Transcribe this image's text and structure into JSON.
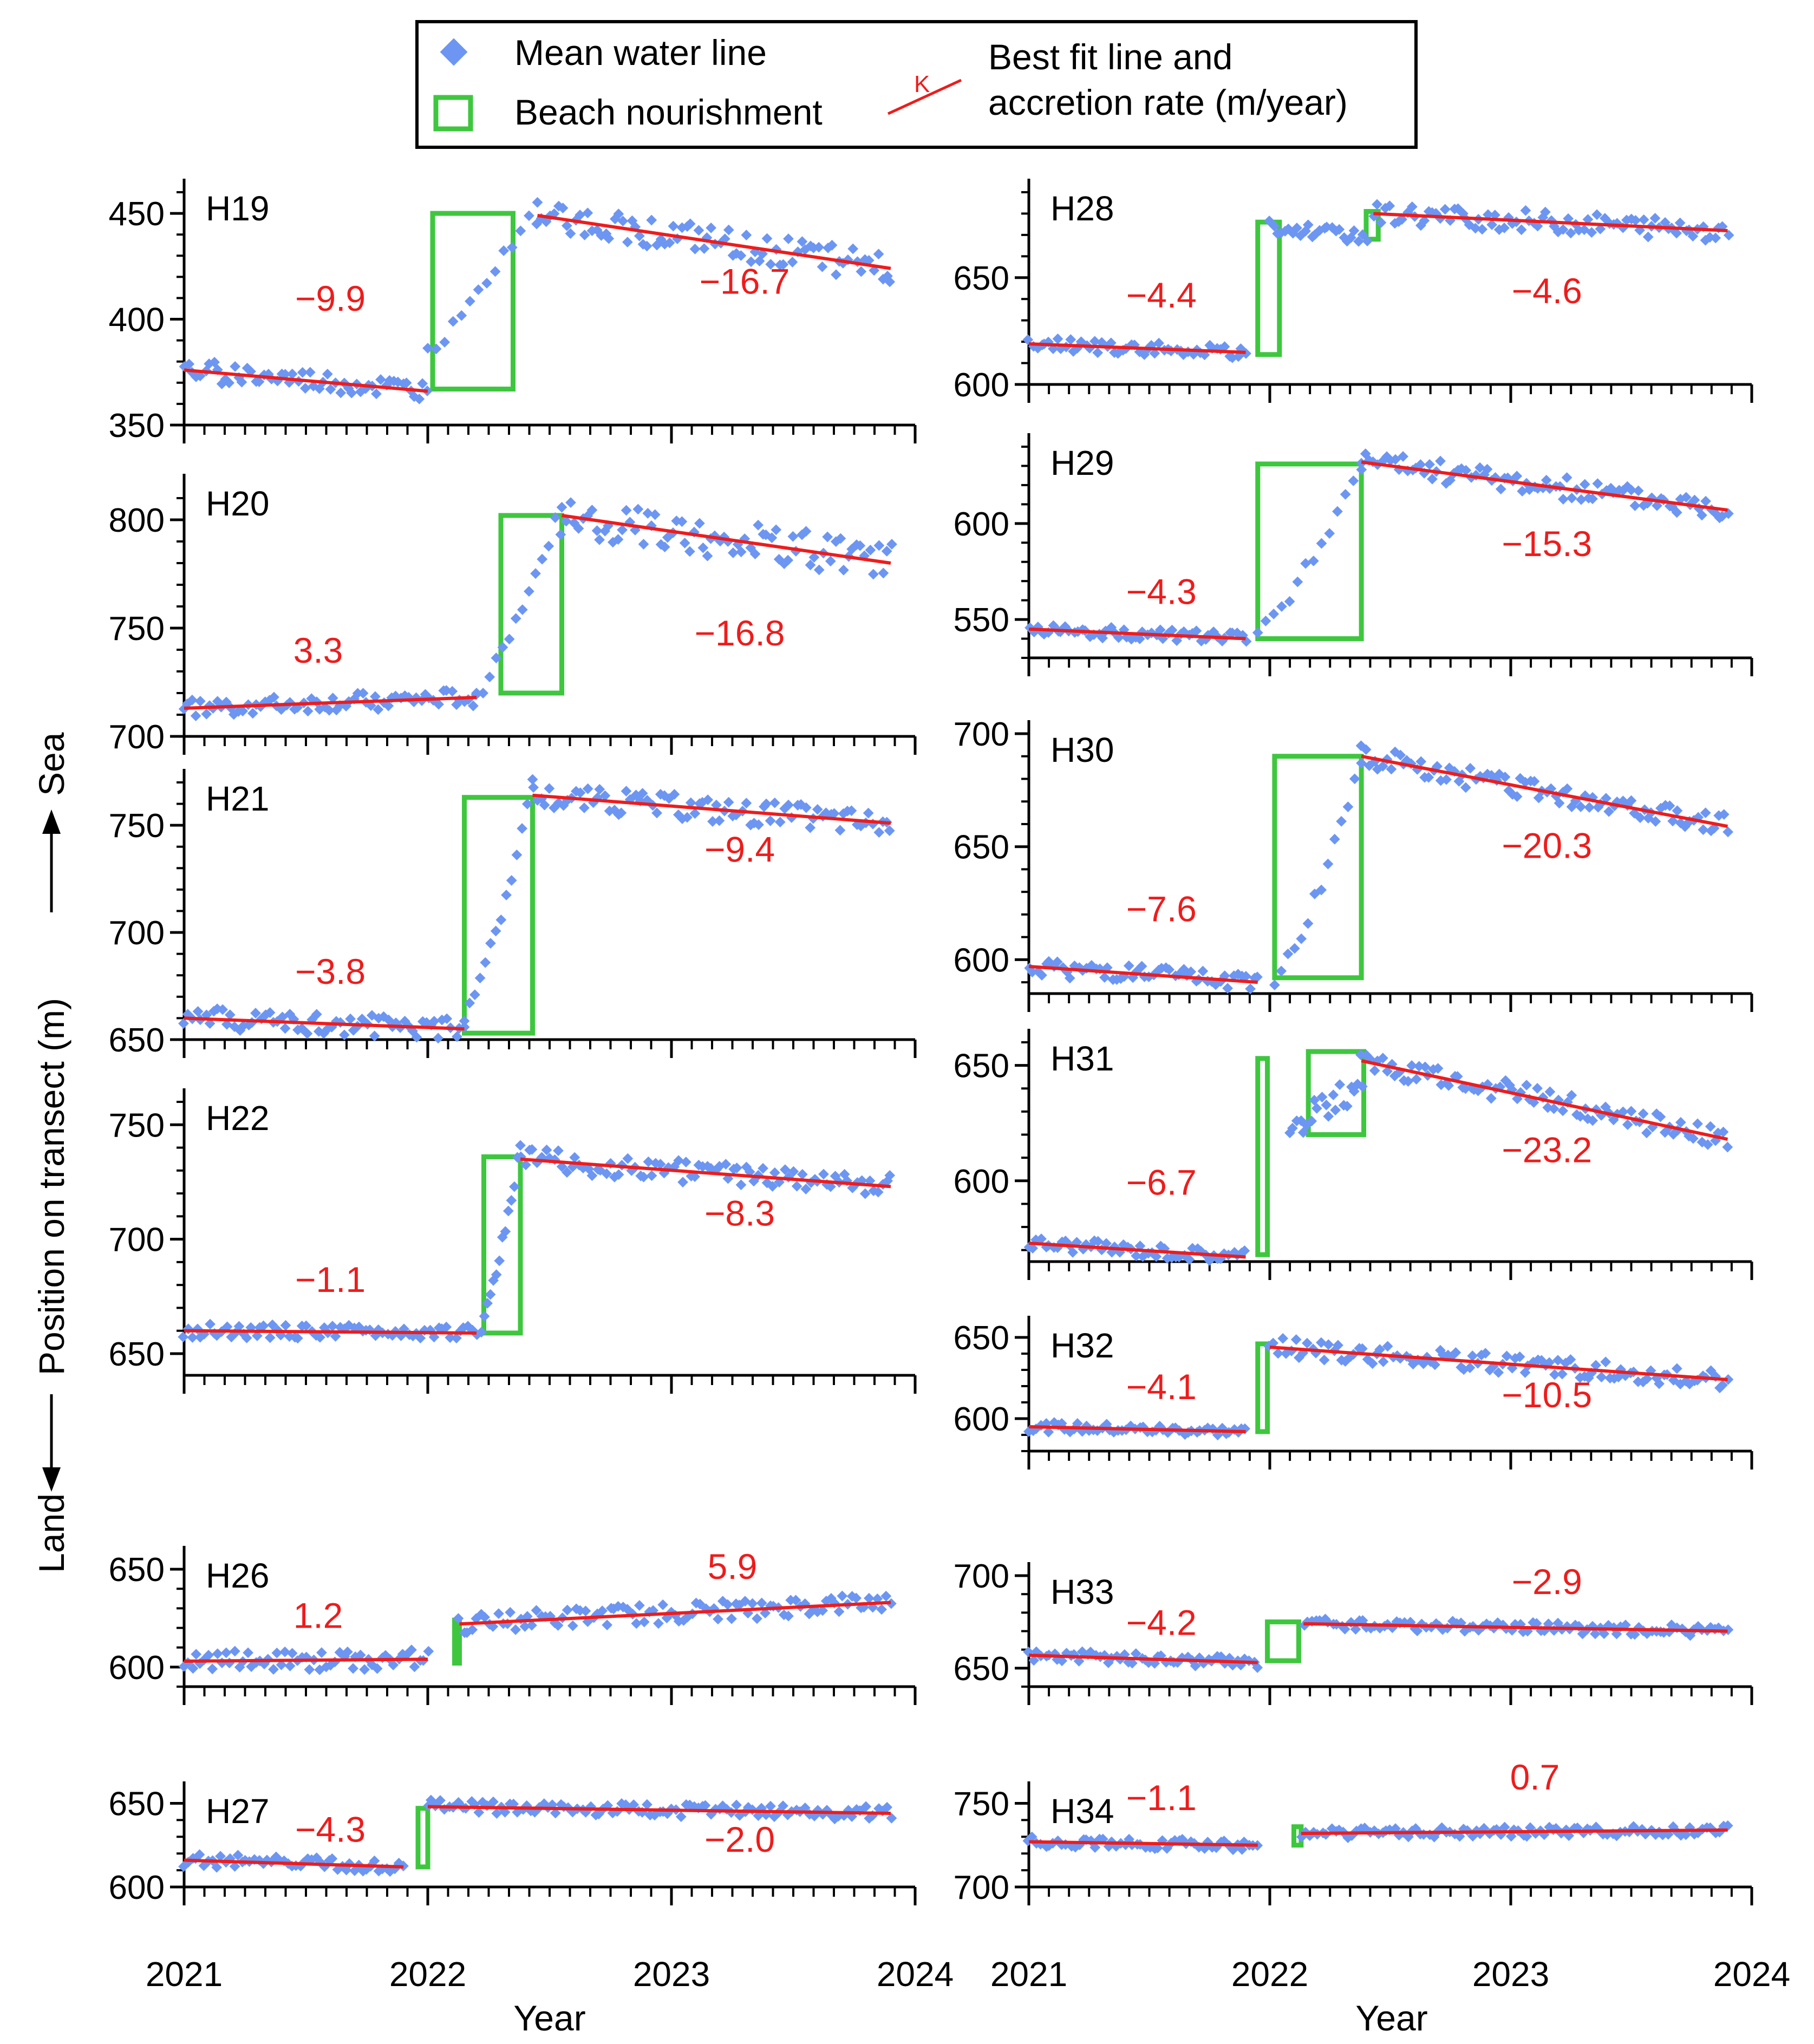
{
  "colors": {
    "points": "#6d96f2",
    "fit": "#ee1c1c",
    "nourish": "#3ec73e",
    "rate_text": "#ee1c1c",
    "axis": "#000000"
  },
  "legend": {
    "points_label": "Mean water line",
    "box_label": "Beach nourishment",
    "fit_label_line1": "Best fit line and",
    "fit_label_line2": "accretion rate (m/year)",
    "fit_symbol": "K"
  },
  "axes": {
    "xlabel": "Year",
    "ylabel_land": "Land",
    "ylabel_middle": "Position on transect (m)",
    "ylabel_sea": "Sea",
    "xticks": [
      "2021",
      "2022",
      "2023",
      "2024"
    ]
  },
  "chart_data": [
    {
      "type": "scatter",
      "title": "H19",
      "column": "left",
      "ylim": [
        350,
        460
      ],
      "yticks": [
        350,
        400,
        450
      ],
      "xlim": [
        2021,
        2024
      ],
      "nourishment": [
        {
          "x0": 2022.02,
          "x1": 2022.35,
          "y0": 367,
          "y1": 450
        }
      ],
      "segments": [
        {
          "x0": 2021.0,
          "x1": 2022.0,
          "y0": 376,
          "y1": 366,
          "rate": "−9.9",
          "seed": 19,
          "noise": 5
        },
        {
          "x0": 2022.45,
          "x1": 2023.9,
          "y0": 449,
          "y1": 424,
          "rate": "−16.7",
          "seed": 119,
          "noise": 7
        }
      ],
      "ramp": {
        "x0": 2022.0,
        "x1": 2022.45,
        "y0": 385,
        "y1": 455
      },
      "rate_positions": [
        [
          2021.6,
          404
        ],
        [
          2023.3,
          412
        ]
      ]
    },
    {
      "type": "scatter",
      "title": "H20",
      "column": "left",
      "ylim": [
        700,
        815
      ],
      "yticks": [
        700,
        750,
        800
      ],
      "xlim": [
        2021,
        2024
      ],
      "nourishment": [
        {
          "x0": 2022.3,
          "x1": 2022.55,
          "y0": 720,
          "y1": 802
        }
      ],
      "segments": [
        {
          "x0": 2021.0,
          "x1": 2022.2,
          "y0": 713,
          "y1": 718,
          "rate": "3.3",
          "seed": 20,
          "noise": 4
        },
        {
          "x0": 2022.55,
          "x1": 2023.9,
          "y0": 802,
          "y1": 780,
          "rate": "−16.8",
          "seed": 120,
          "noise": 9
        }
      ],
      "ramp": {
        "x0": 2022.2,
        "x1": 2022.55,
        "y0": 720,
        "y1": 808
      },
      "rate_positions": [
        [
          2021.55,
          734
        ],
        [
          2023.28,
          742
        ]
      ]
    },
    {
      "type": "scatter",
      "title": "H21",
      "column": "left",
      "ylim": [
        650,
        770
      ],
      "yticks": [
        650,
        700,
        750
      ],
      "xlim": [
        2021,
        2024
      ],
      "nourishment": [
        {
          "x0": 2022.15,
          "x1": 2022.43,
          "y0": 653,
          "y1": 763
        }
      ],
      "segments": [
        {
          "x0": 2021.0,
          "x1": 2022.15,
          "y0": 660,
          "y1": 655,
          "rate": "−3.8",
          "seed": 21,
          "noise": 5
        },
        {
          "x0": 2022.43,
          "x1": 2023.9,
          "y0": 764,
          "y1": 751,
          "rate": "−9.4",
          "seed": 121,
          "noise": 6
        }
      ],
      "ramp": {
        "x0": 2022.15,
        "x1": 2022.43,
        "y0": 660,
        "y1": 768
      },
      "rate_positions": [
        [
          2021.6,
          676
        ],
        [
          2023.28,
          733
        ]
      ]
    },
    {
      "type": "scatter",
      "title": "H22",
      "column": "left",
      "ylim": [
        650,
        760
      ],
      "yticks": [
        650,
        700,
        750
      ],
      "xlim": [
        2021,
        2024
      ],
      "nourishment": [
        {
          "x0": 2022.23,
          "x1": 2022.38,
          "y0": 659,
          "y1": 736
        }
      ],
      "segments": [
        {
          "x0": 2021.0,
          "x1": 2022.2,
          "y0": 660,
          "y1": 659,
          "rate": "−1.1",
          "seed": 22,
          "noise": 3
        },
        {
          "x0": 2022.38,
          "x1": 2023.9,
          "y0": 735,
          "y1": 723,
          "rate": "−8.3",
          "seed": 122,
          "noise": 5
        }
      ],
      "ramp": {
        "x0": 2022.22,
        "x1": 2022.38,
        "y0": 662,
        "y1": 740
      },
      "rate_positions": [
        [
          2021.6,
          677
        ],
        [
          2023.28,
          706
        ]
      ]
    },
    {
      "type": "scatter",
      "title": "H26",
      "column": "left",
      "ylim": [
        590,
        655
      ],
      "yticks": [
        600,
        650
      ],
      "xlim": [
        2021,
        2024
      ],
      "nourishment": [
        {
          "x0": 2022.11,
          "x1": 2022.13,
          "y0": 602,
          "y1": 624
        }
      ],
      "segments": [
        {
          "x0": 2021.0,
          "x1": 2022.0,
          "y0": 603,
          "y1": 604,
          "rate": "1.2",
          "seed": 26,
          "noise": 5
        },
        {
          "x0": 2022.13,
          "x1": 2023.9,
          "y0": 622,
          "y1": 633,
          "rate": "5.9",
          "seed": 126,
          "noise": 5
        }
      ],
      "rate_positions": [
        [
          2021.55,
          620
        ],
        [
          2023.25,
          645
        ]
      ]
    },
    {
      "type": "scatter",
      "title": "H27",
      "column": "left",
      "ylim": [
        600,
        655
      ],
      "yticks": [
        600,
        650
      ],
      "xlim": [
        2021,
        2024
      ],
      "nourishment": [
        {
          "x0": 2021.96,
          "x1": 2022.0,
          "y0": 612,
          "y1": 647
        }
      ],
      "segments": [
        {
          "x0": 2021.0,
          "x1": 2021.9,
          "y0": 616,
          "y1": 612,
          "rate": "−4.3",
          "seed": 27,
          "noise": 4
        },
        {
          "x0": 2022.0,
          "x1": 2023.9,
          "y0": 648,
          "y1": 644,
          "rate": "−2.0",
          "seed": 127,
          "noise": 4
        }
      ],
      "rate_positions": [
        [
          2021.6,
          627
        ],
        [
          2023.28,
          621
        ]
      ]
    },
    {
      "type": "scatter",
      "title": "H28",
      "column": "right",
      "ylim": [
        600,
        690
      ],
      "yticks": [
        600,
        650
      ],
      "xlim": [
        2021,
        2024
      ],
      "nourishment": [
        {
          "x0": 2021.95,
          "x1": 2022.04,
          "y0": 614,
          "y1": 676
        },
        {
          "x0": 2022.4,
          "x1": 2022.45,
          "y0": 668,
          "y1": 681
        }
      ],
      "segments": [
        {
          "x0": 2021.0,
          "x1": 2021.9,
          "y0": 619,
          "y1": 615,
          "rate": "−4.4",
          "seed": 28,
          "noise": 3
        },
        {
          "x0": 2022.0,
          "x1": 2022.4,
          "y0": 674,
          "y1": 669,
          "seed": 228,
          "noise": 3,
          "no_line": true
        },
        {
          "x0": 2022.43,
          "x1": 2023.9,
          "y0": 680,
          "y1": 672,
          "rate": "−4.6",
          "seed": 128,
          "noise": 5
        }
      ],
      "rate_positions": [
        [
          2021.55,
          636
        ],
        [
          2023.15,
          638
        ]
      ]
    },
    {
      "type": "scatter",
      "title": "H29",
      "column": "right",
      "ylim": [
        530,
        640
      ],
      "yticks": [
        550,
        600
      ],
      "xlim": [
        2021,
        2024
      ],
      "nourishment": [
        {
          "x0": 2021.95,
          "x1": 2022.38,
          "y0": 540,
          "y1": 631
        }
      ],
      "segments": [
        {
          "x0": 2021.0,
          "x1": 2021.9,
          "y0": 545,
          "y1": 540,
          "rate": "−4.3",
          "seed": 29,
          "noise": 3
        },
        {
          "x0": 2022.38,
          "x1": 2023.9,
          "y0": 632,
          "y1": 607,
          "rate": "−15.3",
          "seed": 129,
          "noise": 6
        }
      ],
      "ramp": {
        "x0": 2021.95,
        "x1": 2022.38,
        "y0": 543,
        "y1": 632
      },
      "rate_positions": [
        [
          2021.55,
          558
        ],
        [
          2023.15,
          583
        ]
      ]
    },
    {
      "type": "scatter",
      "title": "H30",
      "column": "right",
      "ylim": [
        585,
        700
      ],
      "yticks": [
        600,
        650,
        700
      ],
      "xlim": [
        2021,
        2024
      ],
      "nourishment": [
        {
          "x0": 2022.02,
          "x1": 2022.38,
          "y0": 592,
          "y1": 690
        }
      ],
      "segments": [
        {
          "x0": 2021.0,
          "x1": 2021.95,
          "y0": 597,
          "y1": 590,
          "rate": "−7.6",
          "seed": 30,
          "noise": 4
        },
        {
          "x0": 2022.38,
          "x1": 2023.9,
          "y0": 690,
          "y1": 659,
          "rate": "−20.3",
          "seed": 130,
          "noise": 5
        }
      ],
      "ramp": {
        "x0": 2022.02,
        "x1": 2022.38,
        "y0": 590,
        "y1": 690
      },
      "rate_positions": [
        [
          2021.55,
          617
        ],
        [
          2023.15,
          645
        ]
      ]
    },
    {
      "type": "scatter",
      "title": "H31",
      "column": "right",
      "ylim": [
        565,
        660
      ],
      "yticks": [
        600,
        650
      ],
      "xlim": [
        2021,
        2024
      ],
      "nourishment": [
        {
          "x0": 2021.95,
          "x1": 2021.99,
          "y0": 568,
          "y1": 653
        },
        {
          "x0": 2022.16,
          "x1": 2022.39,
          "y0": 620,
          "y1": 656
        }
      ],
      "segments": [
        {
          "x0": 2021.0,
          "x1": 2021.9,
          "y0": 573,
          "y1": 567,
          "rate": "−6.7",
          "seed": 31,
          "noise": 3
        },
        {
          "x0": 2022.08,
          "x1": 2022.38,
          "y0": 623,
          "y1": 642,
          "seed": 231,
          "noise": 6,
          "no_line": true
        },
        {
          "x0": 2022.38,
          "x1": 2023.9,
          "y0": 652,
          "y1": 618,
          "rate": "−23.2",
          "seed": 131,
          "noise": 5
        }
      ],
      "rate_positions": [
        [
          2021.55,
          594
        ],
        [
          2023.15,
          608
        ]
      ]
    },
    {
      "type": "scatter",
      "title": "H32",
      "column": "right",
      "ylim": [
        580,
        655
      ],
      "yticks": [
        600,
        650
      ],
      "xlim": [
        2021,
        2024
      ],
      "nourishment": [
        {
          "x0": 2021.95,
          "x1": 2021.99,
          "y0": 592,
          "y1": 646
        }
      ],
      "segments": [
        {
          "x0": 2021.0,
          "x1": 2021.9,
          "y0": 595,
          "y1": 592,
          "rate": "−4.1",
          "seed": 32,
          "noise": 3
        },
        {
          "x0": 2022.0,
          "x1": 2023.9,
          "y0": 644,
          "y1": 624,
          "rate": "−10.5",
          "seed": 132,
          "noise": 6
        }
      ],
      "rate_positions": [
        [
          2021.55,
          612
        ],
        [
          2023.15,
          607
        ]
      ]
    },
    {
      "type": "scatter",
      "title": "H33",
      "column": "right",
      "ylim": [
        640,
        700
      ],
      "yticks": [
        650,
        700
      ],
      "xlim": [
        2021,
        2024
      ],
      "nourishment": [
        {
          "x0": 2021.99,
          "x1": 2022.12,
          "y0": 654,
          "y1": 675
        }
      ],
      "segments": [
        {
          "x0": 2021.0,
          "x1": 2021.95,
          "y0": 657,
          "y1": 653,
          "rate": "−4.2",
          "seed": 33,
          "noise": 3
        },
        {
          "x0": 2022.14,
          "x1": 2023.9,
          "y0": 674,
          "y1": 670,
          "rate": "−2.9",
          "seed": 133,
          "noise": 3
        }
      ],
      "rate_positions": [
        [
          2021.55,
          668
        ],
        [
          2023.15,
          690
        ]
      ]
    },
    {
      "type": "scatter",
      "title": "H34",
      "column": "right",
      "ylim": [
        700,
        755
      ],
      "yticks": [
        700,
        750
      ],
      "xlim": [
        2021,
        2024
      ],
      "nourishment": [
        {
          "x0": 2022.1,
          "x1": 2022.13,
          "y0": 725,
          "y1": 736
        }
      ],
      "segments": [
        {
          "x0": 2021.0,
          "x1": 2021.95,
          "y0": 727,
          "y1": 725,
          "rate": "−1.1",
          "seed": 34,
          "noise": 3
        },
        {
          "x0": 2022.13,
          "x1": 2023.9,
          "y0": 732,
          "y1": 734,
          "rate": "0.7",
          "seed": 134,
          "noise": 3
        }
      ],
      "rate_positions": [
        [
          2021.55,
          746
        ],
        [
          2023.1,
          760
        ]
      ]
    }
  ]
}
